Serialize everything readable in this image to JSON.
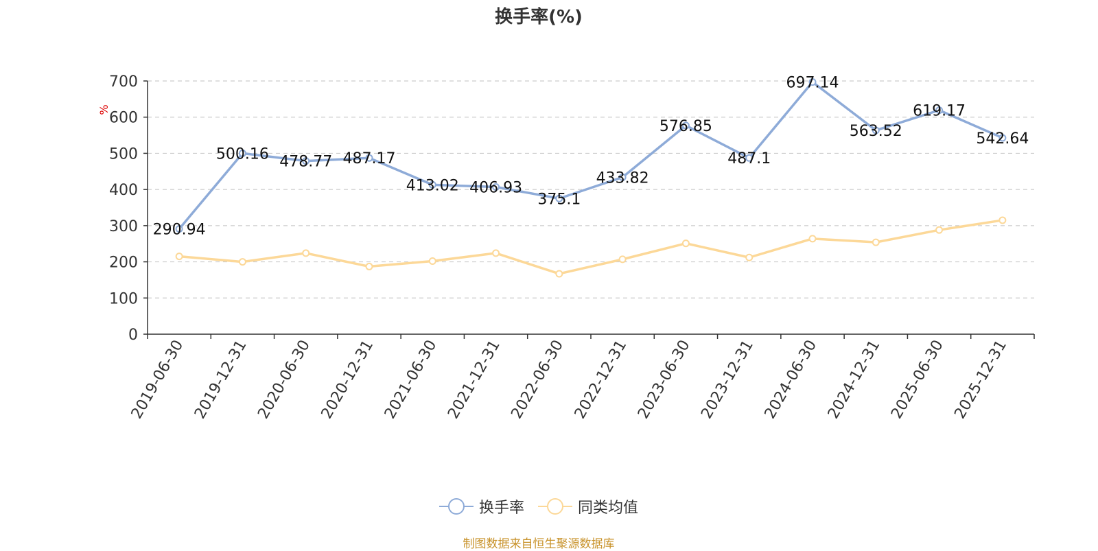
{
  "chart_data": {
    "type": "line",
    "title": "换手率(%)",
    "ylabel": "%",
    "ylim": [
      0,
      700
    ],
    "yticks": [
      0,
      100,
      200,
      300,
      400,
      500,
      600,
      700
    ],
    "grid": true,
    "legend_position": "bottom",
    "categories": [
      "2019-06-30",
      "2019-12-31",
      "2020-06-30",
      "2020-12-31",
      "2021-06-30",
      "2021-12-31",
      "2022-06-30",
      "2022-12-31",
      "2023-06-30",
      "2023-12-31",
      "2024-06-30",
      "2024-12-31",
      "2025-06-30",
      "2025-12-31"
    ],
    "series": [
      {
        "name": "换手率",
        "color": "#8eabd8",
        "show_labels": true,
        "values": [
          290.94,
          500.16,
          478.77,
          487.17,
          413.02,
          406.93,
          375.1,
          433.82,
          576.85,
          487.1,
          697.14,
          563.52,
          619.17,
          542.64
        ]
      },
      {
        "name": "同类均值",
        "color": "#fcd898",
        "show_labels": false,
        "values": [
          215,
          200,
          224,
          187,
          202,
          224,
          167,
          207,
          251,
          212,
          264,
          254,
          288,
          315
        ]
      }
    ]
  },
  "colors": {
    "ylabel": "#dd0000",
    "source_note": "#c8922a"
  },
  "source_note": "制图数据来自恒生聚源数据库"
}
